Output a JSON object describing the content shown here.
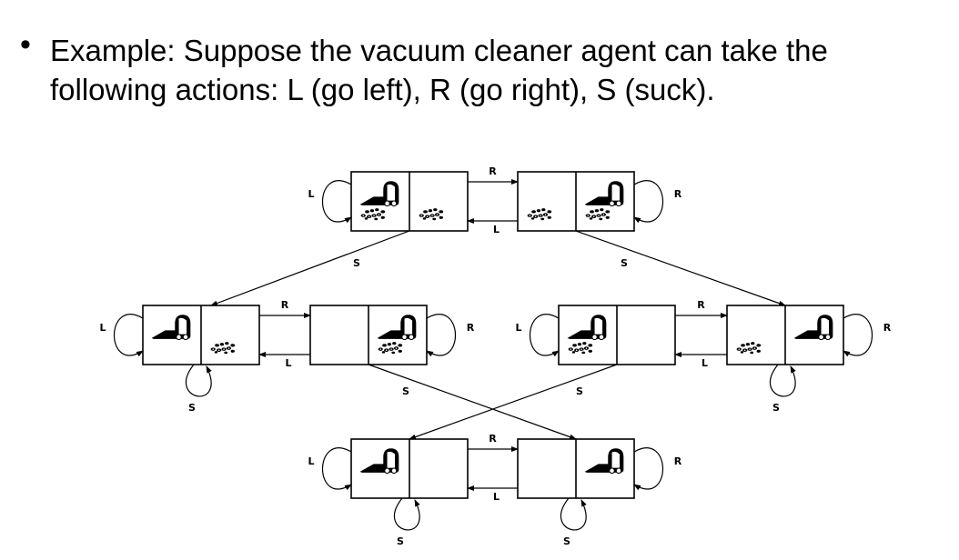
{
  "slide": {
    "bullet_symbol": "•",
    "bullet_lines": [
      "Example: Suppose the vacuum cleaner agent can take the",
      "following actions: L (go left), R (go right), S (suck)."
    ]
  },
  "diagram": {
    "action_labels": {
      "left": "L",
      "right": "R",
      "suck": "S"
    },
    "states": [
      {
        "id": "s1",
        "agent": "left",
        "dirt_left": true,
        "dirt_right": true
      },
      {
        "id": "s2",
        "agent": "right",
        "dirt_left": true,
        "dirt_right": true
      },
      {
        "id": "s3",
        "agent": "left",
        "dirt_left": false,
        "dirt_right": true
      },
      {
        "id": "s4",
        "agent": "right",
        "dirt_left": false,
        "dirt_right": true
      },
      {
        "id": "s5",
        "agent": "left",
        "dirt_left": true,
        "dirt_right": false
      },
      {
        "id": "s6",
        "agent": "right",
        "dirt_left": true,
        "dirt_right": false
      },
      {
        "id": "s7",
        "agent": "left",
        "dirt_left": false,
        "dirt_right": false
      },
      {
        "id": "s8",
        "agent": "right",
        "dirt_left": false,
        "dirt_right": false
      }
    ],
    "transitions": [
      {
        "from": "s1",
        "to": "s2",
        "action": "R"
      },
      {
        "from": "s2",
        "to": "s1",
        "action": "L"
      },
      {
        "from": "s1",
        "to": "s1",
        "action": "L"
      },
      {
        "from": "s2",
        "to": "s2",
        "action": "R"
      },
      {
        "from": "s1",
        "to": "s3",
        "action": "S"
      },
      {
        "from": "s2",
        "to": "s6",
        "action": "S"
      },
      {
        "from": "s3",
        "to": "s4",
        "action": "R"
      },
      {
        "from": "s4",
        "to": "s3",
        "action": "L"
      },
      {
        "from": "s3",
        "to": "s3",
        "action": "L"
      },
      {
        "from": "s3",
        "to": "s3",
        "action": "S"
      },
      {
        "from": "s4",
        "to": "s4",
        "action": "R"
      },
      {
        "from": "s4",
        "to": "s8",
        "action": "S"
      },
      {
        "from": "s5",
        "to": "s6",
        "action": "R"
      },
      {
        "from": "s6",
        "to": "s5",
        "action": "L"
      },
      {
        "from": "s5",
        "to": "s5",
        "action": "L"
      },
      {
        "from": "s5",
        "to": "s7",
        "action": "S"
      },
      {
        "from": "s6",
        "to": "s6",
        "action": "R"
      },
      {
        "from": "s6",
        "to": "s6",
        "action": "S"
      },
      {
        "from": "s7",
        "to": "s8",
        "action": "R"
      },
      {
        "from": "s8",
        "to": "s7",
        "action": "L"
      },
      {
        "from": "s7",
        "to": "s7",
        "action": "L"
      },
      {
        "from": "s7",
        "to": "s7",
        "action": "S"
      },
      {
        "from": "s8",
        "to": "s8",
        "action": "R"
      },
      {
        "from": "s8",
        "to": "s8",
        "action": "S"
      }
    ]
  }
}
